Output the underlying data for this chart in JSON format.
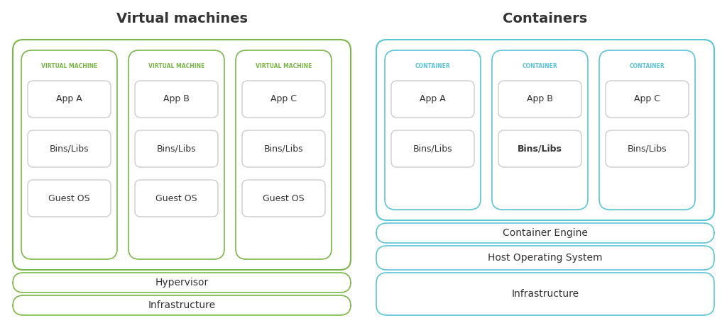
{
  "vm_title": "Virtual machines",
  "container_title": "Containers",
  "vm_color": "#7ab648",
  "container_color": "#5bc4d9",
  "inner_box_color": "#cccccc",
  "text_color": "#333333",
  "label_color_vm": "#7ab648",
  "label_color_container": "#5bc4d9",
  "bg_color": "#ffffff",
  "vm_machines": [
    {
      "label": "VIRTUAL MACHINE",
      "app": "App A",
      "bins": "Bins/Libs",
      "os": "Guest OS"
    },
    {
      "label": "VIRTUAL MACHINE",
      "app": "App B",
      "bins": "Bins/Libs",
      "os": "Guest OS"
    },
    {
      "label": "VIRTUAL MACHINE",
      "app": "App C",
      "bins": "Bins/Libs",
      "os": "Guest OS"
    }
  ],
  "containers": [
    {
      "label": "CONTAINER",
      "app": "App A",
      "bins": "Bins/Libs",
      "bins_bold": false
    },
    {
      "label": "CONTAINER",
      "app": "App B",
      "bins": "Bins/Libs",
      "bins_bold": true
    },
    {
      "label": "CONTAINER",
      "app": "App C",
      "bins": "Bins/Libs",
      "bins_bold": false
    }
  ],
  "vm_bottom_layers": [
    "Hypervisor",
    "Infrastructure"
  ],
  "container_bottom_layers": [
    "Container Engine",
    "Host Operating System",
    "Infrastructure"
  ]
}
